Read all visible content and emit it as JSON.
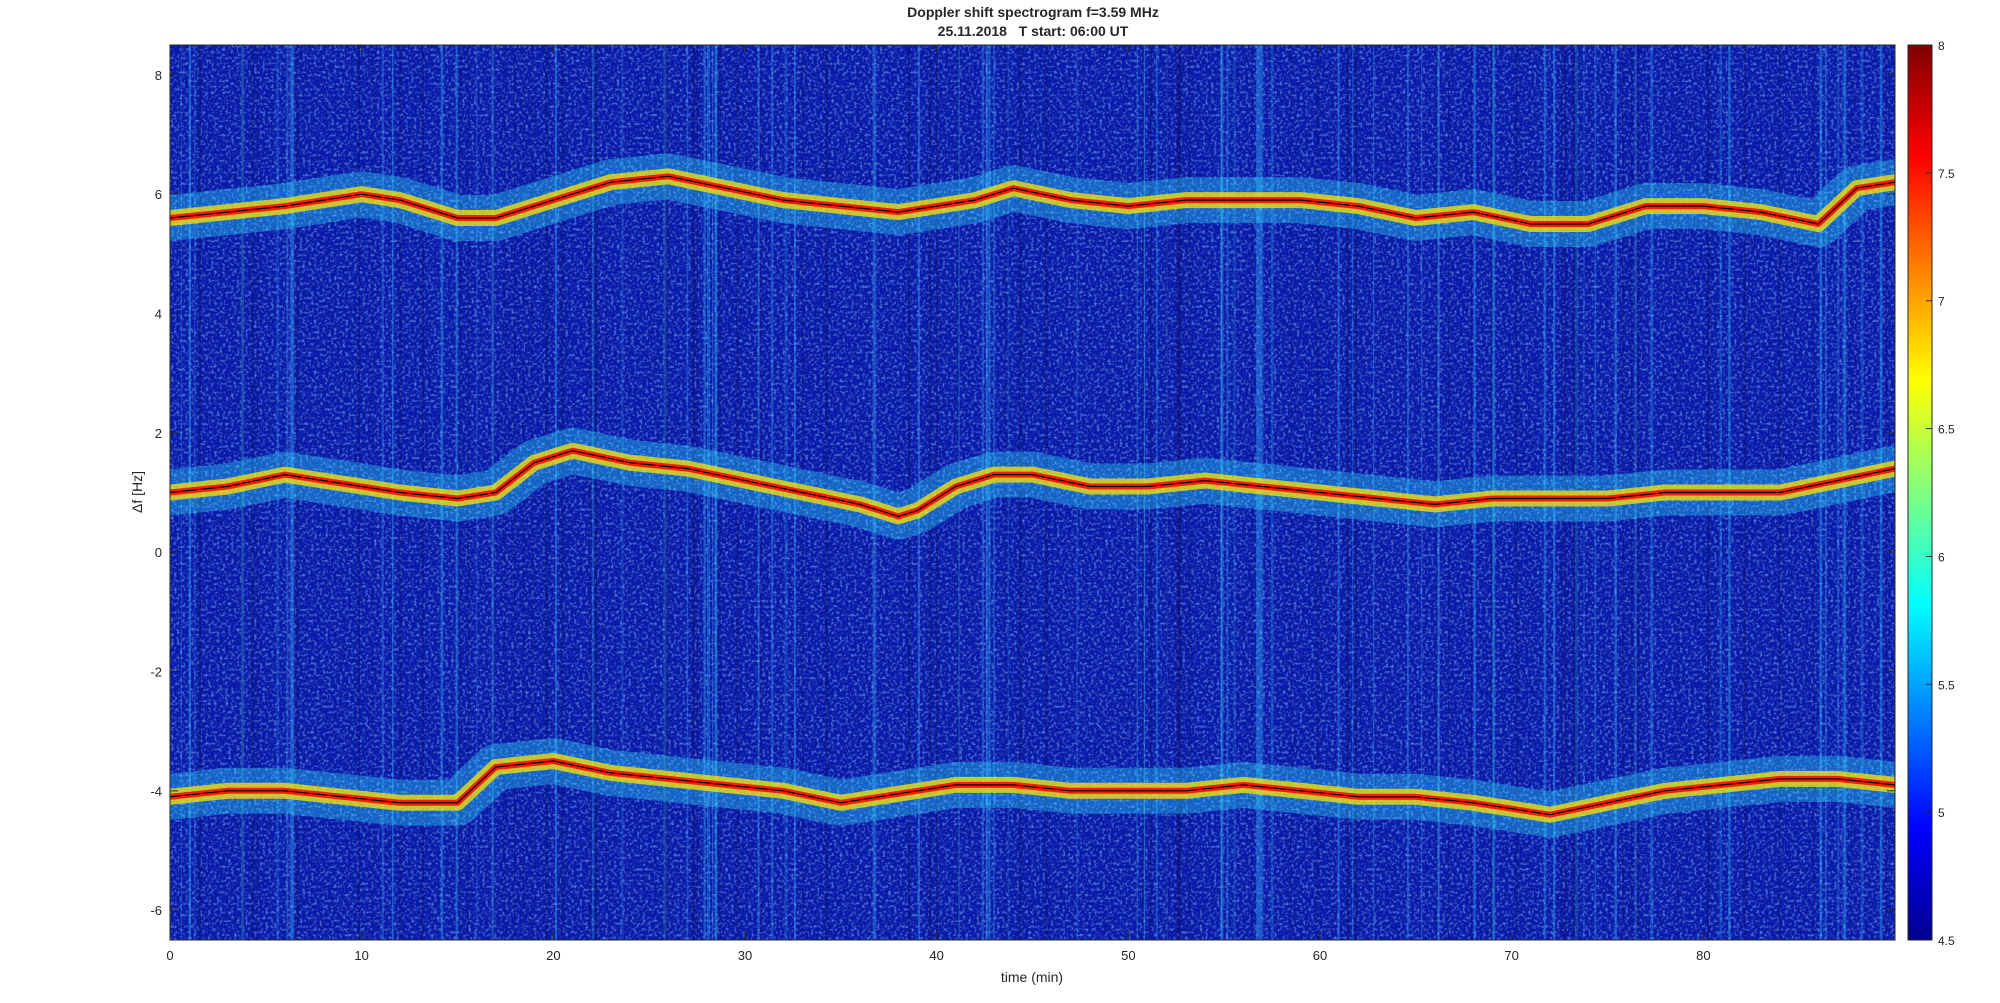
{
  "chart_data": {
    "type": "heatmap",
    "title": "Doppler shift spectrogram f=3.59 MHz",
    "subtitle": "25.11.2018   T start: 06:00 UT",
    "xlabel": "time (min)",
    "ylabel": "Δf [Hz]",
    "xlim": [
      0,
      90
    ],
    "ylim": [
      -6.5,
      8.5
    ],
    "x_ticks": [
      0,
      10,
      20,
      30,
      40,
      50,
      60,
      70,
      80
    ],
    "y_ticks": [
      -6,
      -4,
      -2,
      0,
      2,
      4,
      6,
      8
    ],
    "colorbar": {
      "colormap": "jet",
      "range": [
        4.5,
        8
      ],
      "ticks": [
        4.5,
        5,
        5.5,
        6,
        6.5,
        7,
        7.5,
        8
      ]
    },
    "grid": false,
    "traces": [
      {
        "x": [
          0,
          3,
          6,
          8,
          10,
          12,
          15,
          17,
          20,
          23,
          26,
          29,
          32,
          35,
          38,
          40,
          42,
          44,
          47,
          50,
          53,
          56,
          59,
          62,
          65,
          68,
          71,
          74,
          77,
          80,
          83,
          86,
          88,
          90
        ],
        "y": [
          5.6,
          5.7,
          5.8,
          5.9,
          6.0,
          5.9,
          5.6,
          5.6,
          5.9,
          6.2,
          6.3,
          6.1,
          5.9,
          5.8,
          5.7,
          5.8,
          5.9,
          6.1,
          5.9,
          5.8,
          5.9,
          5.9,
          5.9,
          5.8,
          5.6,
          5.7,
          5.5,
          5.5,
          5.8,
          5.8,
          5.7,
          5.5,
          6.1,
          6.2
        ]
      },
      {
        "x": [
          0,
          3,
          6,
          8,
          10,
          12,
          15,
          17,
          19,
          21,
          24,
          27,
          30,
          33,
          36,
          38,
          39,
          41,
          43,
          45,
          48,
          51,
          54,
          57,
          60,
          63,
          66,
          69,
          72,
          75,
          78,
          81,
          84,
          87,
          90
        ],
        "y": [
          1.0,
          1.1,
          1.3,
          1.2,
          1.1,
          1.0,
          0.9,
          1.0,
          1.5,
          1.7,
          1.5,
          1.4,
          1.2,
          1.0,
          0.8,
          0.6,
          0.7,
          1.1,
          1.3,
          1.3,
          1.1,
          1.1,
          1.2,
          1.1,
          1.0,
          0.9,
          0.8,
          0.9,
          0.9,
          0.9,
          1.0,
          1.0,
          1.0,
          1.2,
          1.4
        ]
      },
      {
        "x": [
          0,
          3,
          6,
          9,
          12,
          15,
          17,
          20,
          23,
          26,
          29,
          32,
          35,
          37,
          39,
          41,
          44,
          47,
          50,
          53,
          56,
          59,
          62,
          65,
          68,
          70,
          72,
          75,
          78,
          81,
          84,
          87,
          90
        ],
        "y": [
          -4.1,
          -4.0,
          -4.0,
          -4.1,
          -4.2,
          -4.2,
          -3.6,
          -3.5,
          -3.7,
          -3.8,
          -3.9,
          -4.0,
          -4.2,
          -4.1,
          -4.0,
          -3.9,
          -3.9,
          -4.0,
          -4.0,
          -4.0,
          -3.9,
          -4.0,
          -4.1,
          -4.1,
          -4.2,
          -4.3,
          -4.4,
          -4.2,
          -4.0,
          -3.9,
          -3.8,
          -3.8,
          -3.9
        ]
      }
    ]
  }
}
